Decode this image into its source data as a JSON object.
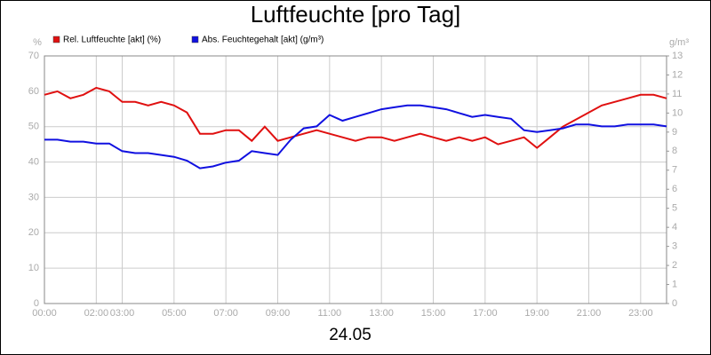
{
  "chart_data": {
    "type": "line",
    "title": "Luftfeuchte [pro Tag]",
    "x_label": "24.05",
    "y_unit": "%",
    "y2_unit": "g/m³",
    "x": [
      0,
      0.5,
      1,
      1.5,
      2,
      2.5,
      3,
      3.5,
      4,
      4.5,
      5,
      5.5,
      6,
      6.5,
      7,
      7.5,
      8,
      8.5,
      9,
      9.5,
      10,
      10.5,
      11,
      11.5,
      12,
      12.5,
      13,
      13.5,
      14,
      14.5,
      15,
      15.5,
      16,
      16.5,
      17,
      17.5,
      18,
      18.5,
      19,
      19.5,
      20,
      20.5,
      21,
      21.5,
      22,
      22.5,
      23,
      23.5,
      24
    ],
    "series": [
      {
        "name": "Rel. Luftfeuchte [akt] (%)",
        "color": "#e01010",
        "values": [
          59,
          60,
          58,
          59,
          61,
          60,
          57,
          57,
          56,
          57,
          56,
          54,
          48,
          48,
          49,
          49,
          46,
          50,
          46,
          47,
          48,
          49,
          48,
          47,
          46,
          47,
          47,
          46,
          47,
          48,
          47,
          46,
          47,
          46,
          47,
          45,
          46,
          47,
          44,
          47,
          50,
          52,
          54,
          56,
          57,
          58,
          59,
          59,
          58
        ]
      },
      {
        "name": "Abs. Feuchtegehalt [akt] (g/m³)",
        "color": "#1010e0",
        "axis": "y2",
        "values": [
          8.6,
          8.6,
          8.5,
          8.5,
          8.4,
          8.4,
          8.0,
          7.9,
          7.9,
          7.8,
          7.7,
          7.5,
          7.1,
          7.2,
          7.4,
          7.5,
          8.0,
          7.9,
          7.8,
          8.6,
          9.2,
          9.3,
          9.9,
          9.6,
          9.8,
          10.0,
          10.2,
          10.3,
          10.4,
          10.4,
          10.3,
          10.2,
          10.0,
          9.8,
          9.9,
          9.8,
          9.7,
          9.1,
          9.0,
          9.1,
          9.2,
          9.4,
          9.4,
          9.3,
          9.3,
          9.4,
          9.4,
          9.4,
          9.3
        ]
      }
    ],
    "xlim": [
      0,
      24
    ],
    "xticks": [
      {
        "value": 0,
        "label": "00:00"
      },
      {
        "value": 2,
        "label": "02:00"
      },
      {
        "value": 3,
        "label": "03:00"
      },
      {
        "value": 5,
        "label": "05:00"
      },
      {
        "value": 7,
        "label": "07:00"
      },
      {
        "value": 9,
        "label": "09:00"
      },
      {
        "value": 11,
        "label": "11:00"
      },
      {
        "value": 13,
        "label": "13:00"
      },
      {
        "value": 15,
        "label": "15:00"
      },
      {
        "value": 17,
        "label": "17:00"
      },
      {
        "value": 19,
        "label": "19:00"
      },
      {
        "value": 21,
        "label": "21:00"
      },
      {
        "value": 23,
        "label": "23:00"
      }
    ],
    "ylim": [
      0,
      70
    ],
    "yticks": [
      0,
      10,
      20,
      30,
      40,
      50,
      60,
      70
    ],
    "y2lim": [
      0,
      13
    ],
    "y2ticks": [
      0,
      1,
      2,
      3,
      4,
      5,
      6,
      7,
      8,
      9,
      10,
      11,
      12,
      13
    ],
    "grid": true
  }
}
